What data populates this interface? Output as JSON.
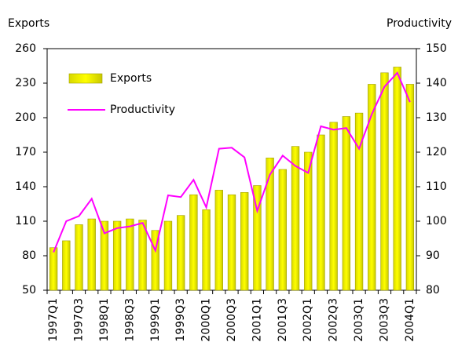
{
  "chart_data": {
    "type": "bar",
    "ylabel": "Exports",
    "y2label": "Productivity",
    "categories": [
      "1997Q1",
      null,
      "1997Q3",
      null,
      "1998Q1",
      null,
      "1998Q3",
      null,
      "1999Q1",
      null,
      "1999Q3",
      null,
      "2000Q1",
      null,
      "2000Q3",
      null,
      "2001Q1",
      null,
      "2001Q3",
      null,
      "2002Q1",
      null,
      "2002Q3",
      null,
      "2003Q1",
      null,
      "2003Q3",
      null,
      "2004Q1"
    ],
    "series": [
      {
        "name": "Exports",
        "type": "bar",
        "color": "#ffff00",
        "values": [
          87,
          93,
          107,
          112,
          110,
          110,
          112,
          111,
          102,
          110,
          115,
          133,
          120,
          137,
          133,
          135,
          141,
          165,
          155,
          175,
          170,
          185,
          196,
          201,
          204,
          229,
          239,
          244,
          229
        ]
      },
      {
        "name": "Productivity",
        "type": "line",
        "axis": "y2",
        "color": "#ff00ff",
        "values": [
          91,
          100,
          101.5,
          106.5,
          96.5,
          98,
          98.5,
          99.5,
          91.5,
          107.5,
          107,
          112,
          104,
          121,
          121.3,
          118.5,
          103,
          113.5,
          119,
          116,
          114,
          127.5,
          126.5,
          127,
          121,
          131,
          139,
          143,
          134.5
        ]
      }
    ],
    "ylim": [
      50,
      260
    ],
    "yticks": [
      50,
      80,
      110,
      140,
      170,
      200,
      230,
      260
    ],
    "y2lim": [
      80,
      150
    ],
    "y2ticks": [
      80,
      90,
      100,
      110,
      120,
      130,
      140,
      150
    ],
    "grid": false
  }
}
